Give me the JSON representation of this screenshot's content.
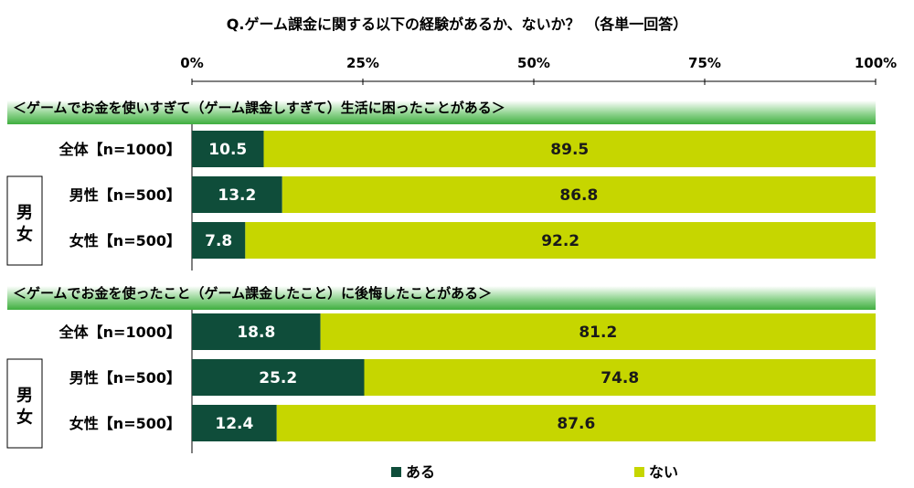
{
  "chart_data": {
    "type": "bar",
    "orientation": "horizontal",
    "stacked": true,
    "title": "Q.ゲーム課金に関する以下の経験があるか、ないか？ （各単一回答）",
    "x_ticks": [
      "0%",
      "25%",
      "50%",
      "75%",
      "100%"
    ],
    "xlim": [
      0,
      100
    ],
    "legend_position": "bottom",
    "group_side_label": "男女",
    "legend": [
      {
        "name": "ある",
        "color": "#0f4d3a"
      },
      {
        "name": "ない",
        "color": "#c6d600"
      }
    ],
    "groups": [
      {
        "label": "＜ゲームでお金を使いすぎて（ゲーム課金しすぎて）生活に困ったことがある＞",
        "rows": [
          {
            "label": "全体【n=1000】",
            "values": [
              10.5,
              89.5
            ]
          },
          {
            "label": "男性【n=500】",
            "values": [
              13.2,
              86.8
            ]
          },
          {
            "label": "女性【n=500】",
            "values": [
              7.8,
              92.2
            ]
          }
        ]
      },
      {
        "label": "＜ゲームでお金を使ったこと（ゲーム課金したこと）に後悔したことがある＞",
        "rows": [
          {
            "label": "全体【n=1000】",
            "values": [
              18.8,
              81.2
            ]
          },
          {
            "label": "男性【n=500】",
            "values": [
              25.2,
              74.8
            ]
          },
          {
            "label": "女性【n=500】",
            "values": [
              12.4,
              87.6
            ]
          }
        ]
      }
    ]
  }
}
